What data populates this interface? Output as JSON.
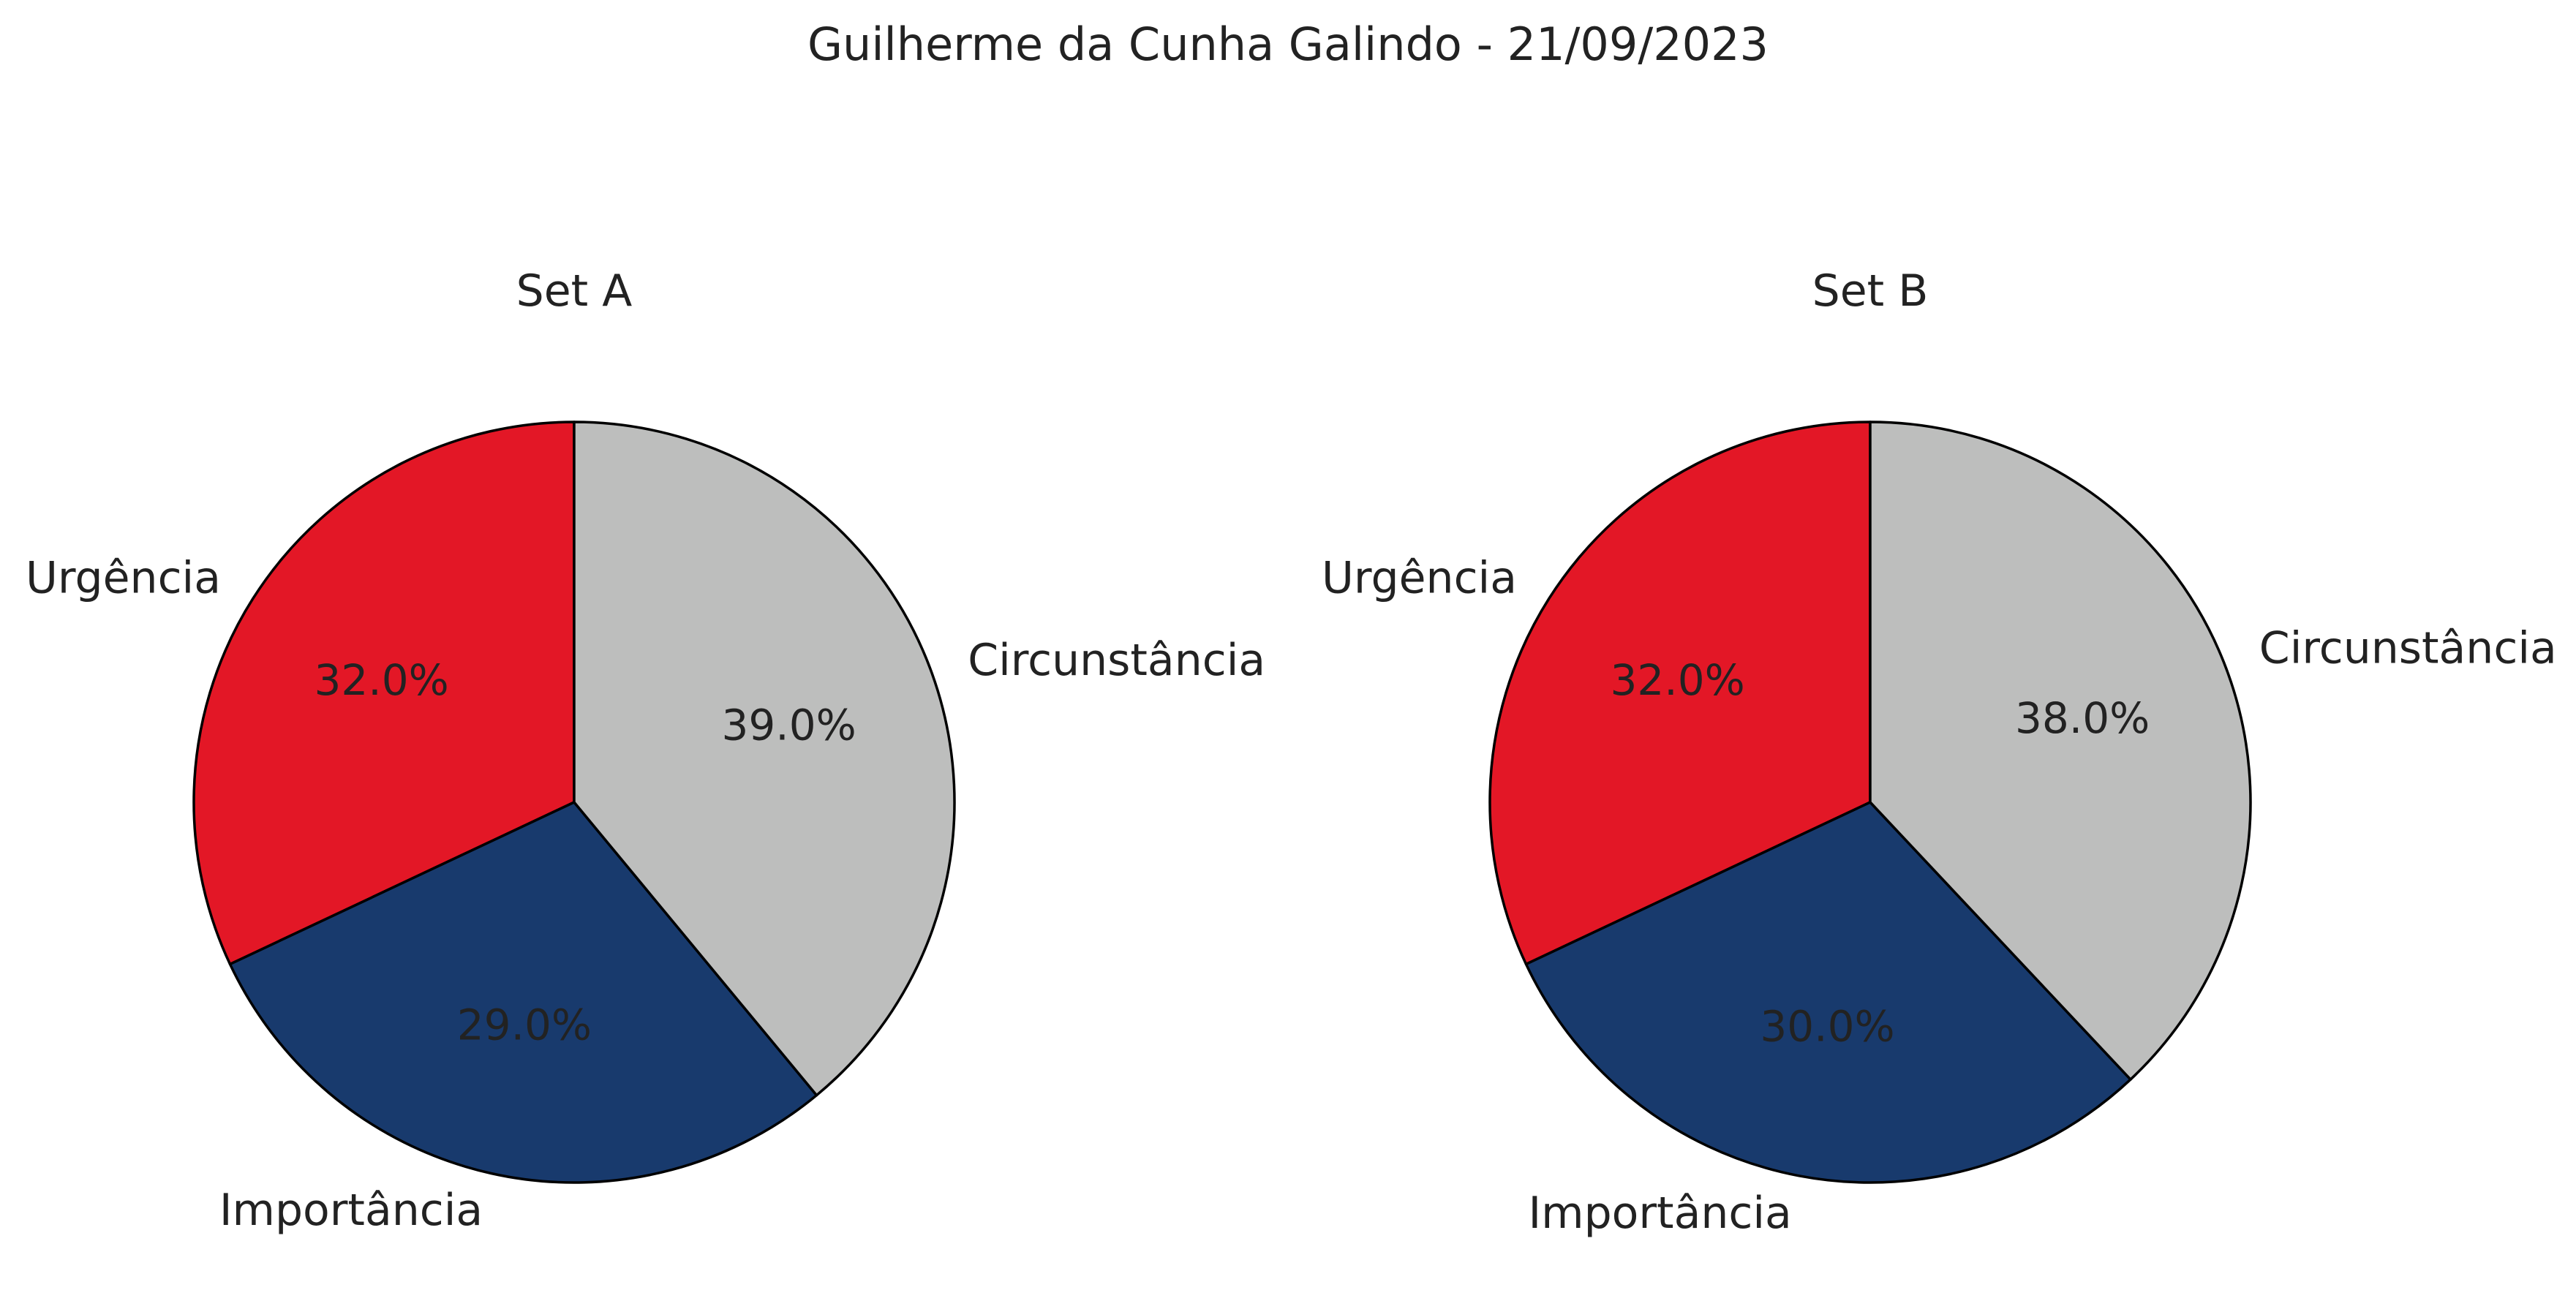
{
  "figure": {
    "suptitle": "Guilherme da Cunha Galindo - 21/09/2023"
  },
  "chart_data": [
    {
      "type": "pie",
      "title": "Set A",
      "slices": [
        {
          "label": "Urgência",
          "value": 32.0,
          "pct_label": "32.0%",
          "color": "#e31726"
        },
        {
          "label": "Importância",
          "value": 29.0,
          "pct_label": "29.0%",
          "color": "#183a6d"
        },
        {
          "label": "Circunstância",
          "value": 39.0,
          "pct_label": "39.0%",
          "color": "#bdbebd"
        }
      ],
      "start_angle_deg": 90,
      "direction": "counterclockwise",
      "edge_color": "#000000"
    },
    {
      "type": "pie",
      "title": "Set B",
      "slices": [
        {
          "label": "Urgência",
          "value": 32.0,
          "pct_label": "32.0%",
          "color": "#e31726"
        },
        {
          "label": "Importância",
          "value": 30.0,
          "pct_label": "30.0%",
          "color": "#183a6d"
        },
        {
          "label": "Circunstância",
          "value": 38.0,
          "pct_label": "38.0%",
          "color": "#bdbebd"
        }
      ],
      "start_angle_deg": 90,
      "direction": "counterclockwise",
      "edge_color": "#000000"
    }
  ]
}
